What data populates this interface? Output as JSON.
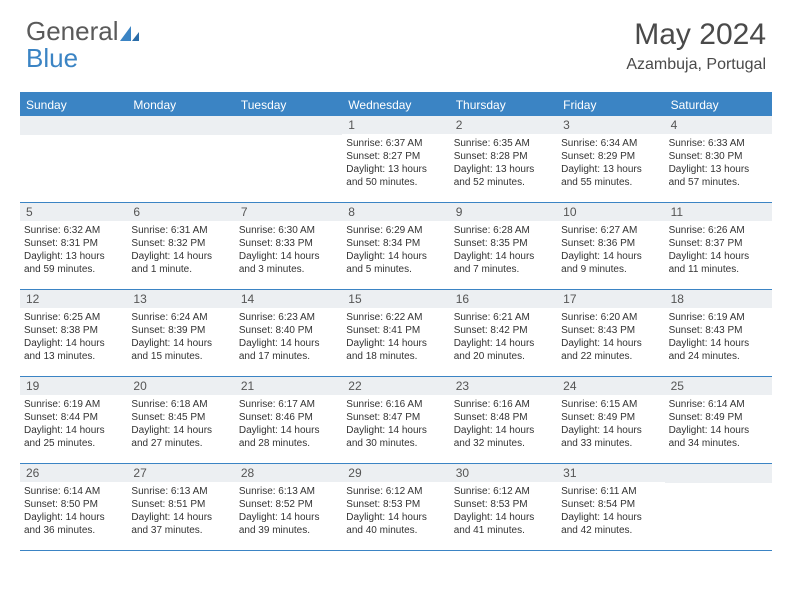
{
  "brand": {
    "part1": "General",
    "part2": "Blue"
  },
  "header": {
    "title": "May 2024",
    "location": "Azambuja, Portugal"
  },
  "colors": {
    "accent": "#3b84c4",
    "row_bg": "#eceff2",
    "text": "#4a4a4a"
  },
  "weekdays": [
    "Sunday",
    "Monday",
    "Tuesday",
    "Wednesday",
    "Thursday",
    "Friday",
    "Saturday"
  ],
  "labels": {
    "sunrise": "Sunrise:",
    "sunset": "Sunset:",
    "daylight": "Daylight:"
  },
  "weeks": [
    [
      {
        "blank": true
      },
      {
        "blank": true
      },
      {
        "blank": true
      },
      {
        "n": "1",
        "sunrise": "6:37 AM",
        "sunset": "8:27 PM",
        "daylight": "13 hours and 50 minutes."
      },
      {
        "n": "2",
        "sunrise": "6:35 AM",
        "sunset": "8:28 PM",
        "daylight": "13 hours and 52 minutes."
      },
      {
        "n": "3",
        "sunrise": "6:34 AM",
        "sunset": "8:29 PM",
        "daylight": "13 hours and 55 minutes."
      },
      {
        "n": "4",
        "sunrise": "6:33 AM",
        "sunset": "8:30 PM",
        "daylight": "13 hours and 57 minutes."
      }
    ],
    [
      {
        "n": "5",
        "sunrise": "6:32 AM",
        "sunset": "8:31 PM",
        "daylight": "13 hours and 59 minutes."
      },
      {
        "n": "6",
        "sunrise": "6:31 AM",
        "sunset": "8:32 PM",
        "daylight": "14 hours and 1 minute."
      },
      {
        "n": "7",
        "sunrise": "6:30 AM",
        "sunset": "8:33 PM",
        "daylight": "14 hours and 3 minutes."
      },
      {
        "n": "8",
        "sunrise": "6:29 AM",
        "sunset": "8:34 PM",
        "daylight": "14 hours and 5 minutes."
      },
      {
        "n": "9",
        "sunrise": "6:28 AM",
        "sunset": "8:35 PM",
        "daylight": "14 hours and 7 minutes."
      },
      {
        "n": "10",
        "sunrise": "6:27 AM",
        "sunset": "8:36 PM",
        "daylight": "14 hours and 9 minutes."
      },
      {
        "n": "11",
        "sunrise": "6:26 AM",
        "sunset": "8:37 PM",
        "daylight": "14 hours and 11 minutes."
      }
    ],
    [
      {
        "n": "12",
        "sunrise": "6:25 AM",
        "sunset": "8:38 PM",
        "daylight": "14 hours and 13 minutes."
      },
      {
        "n": "13",
        "sunrise": "6:24 AM",
        "sunset": "8:39 PM",
        "daylight": "14 hours and 15 minutes."
      },
      {
        "n": "14",
        "sunrise": "6:23 AM",
        "sunset": "8:40 PM",
        "daylight": "14 hours and 17 minutes."
      },
      {
        "n": "15",
        "sunrise": "6:22 AM",
        "sunset": "8:41 PM",
        "daylight": "14 hours and 18 minutes."
      },
      {
        "n": "16",
        "sunrise": "6:21 AM",
        "sunset": "8:42 PM",
        "daylight": "14 hours and 20 minutes."
      },
      {
        "n": "17",
        "sunrise": "6:20 AM",
        "sunset": "8:43 PM",
        "daylight": "14 hours and 22 minutes."
      },
      {
        "n": "18",
        "sunrise": "6:19 AM",
        "sunset": "8:43 PM",
        "daylight": "14 hours and 24 minutes."
      }
    ],
    [
      {
        "n": "19",
        "sunrise": "6:19 AM",
        "sunset": "8:44 PM",
        "daylight": "14 hours and 25 minutes."
      },
      {
        "n": "20",
        "sunrise": "6:18 AM",
        "sunset": "8:45 PM",
        "daylight": "14 hours and 27 minutes."
      },
      {
        "n": "21",
        "sunrise": "6:17 AM",
        "sunset": "8:46 PM",
        "daylight": "14 hours and 28 minutes."
      },
      {
        "n": "22",
        "sunrise": "6:16 AM",
        "sunset": "8:47 PM",
        "daylight": "14 hours and 30 minutes."
      },
      {
        "n": "23",
        "sunrise": "6:16 AM",
        "sunset": "8:48 PM",
        "daylight": "14 hours and 32 minutes."
      },
      {
        "n": "24",
        "sunrise": "6:15 AM",
        "sunset": "8:49 PM",
        "daylight": "14 hours and 33 minutes."
      },
      {
        "n": "25",
        "sunrise": "6:14 AM",
        "sunset": "8:49 PM",
        "daylight": "14 hours and 34 minutes."
      }
    ],
    [
      {
        "n": "26",
        "sunrise": "6:14 AM",
        "sunset": "8:50 PM",
        "daylight": "14 hours and 36 minutes."
      },
      {
        "n": "27",
        "sunrise": "6:13 AM",
        "sunset": "8:51 PM",
        "daylight": "14 hours and 37 minutes."
      },
      {
        "n": "28",
        "sunrise": "6:13 AM",
        "sunset": "8:52 PM",
        "daylight": "14 hours and 39 minutes."
      },
      {
        "n": "29",
        "sunrise": "6:12 AM",
        "sunset": "8:53 PM",
        "daylight": "14 hours and 40 minutes."
      },
      {
        "n": "30",
        "sunrise": "6:12 AM",
        "sunset": "8:53 PM",
        "daylight": "14 hours and 41 minutes."
      },
      {
        "n": "31",
        "sunrise": "6:11 AM",
        "sunset": "8:54 PM",
        "daylight": "14 hours and 42 minutes."
      },
      {
        "blank": true
      }
    ]
  ]
}
